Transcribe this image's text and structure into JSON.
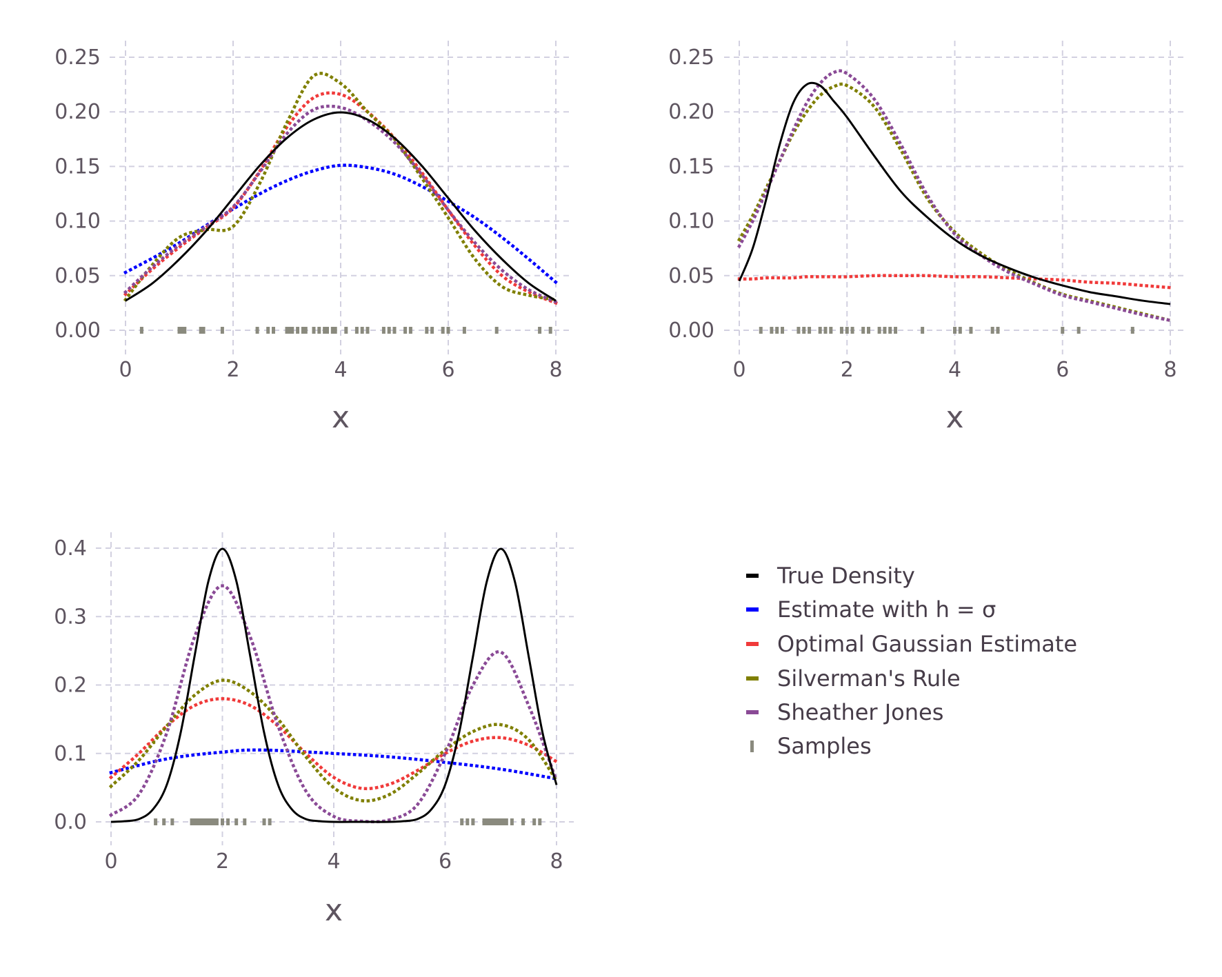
{
  "colors": {
    "true_density": "#000000",
    "h_sigma": "#0000ff",
    "optimal": "#f03a3a",
    "silverman": "#7f7f00",
    "sheather_jones": "#8a4a96",
    "samples": "#8a8a7e",
    "grid": "#d2d0e0"
  },
  "legend": {
    "placement": "bottom-right",
    "items": [
      {
        "key": "true_density",
        "label": "True Density",
        "marker": "dash"
      },
      {
        "key": "h_sigma",
        "label": "Estimate with h = σ",
        "marker": "dash"
      },
      {
        "key": "optimal",
        "label": "Optimal Gaussian Estimate",
        "marker": "dash"
      },
      {
        "key": "silverman",
        "label": "Silverman's Rule",
        "marker": "dash"
      },
      {
        "key": "sheather_jones",
        "label": "Sheather Jones",
        "marker": "dash"
      },
      {
        "key": "samples",
        "label": "Samples",
        "marker": "tick"
      }
    ]
  },
  "chart_data": [
    {
      "type": "line",
      "xlabel": "x",
      "ylabel": "",
      "xlim": [
        0,
        8
      ],
      "ylim": [
        0,
        0.25
      ],
      "xticks": [
        "0",
        "2",
        "4",
        "6",
        "8"
      ],
      "yticks": [
        "0.00",
        "0.05",
        "0.10",
        "0.15",
        "0.20",
        "0.25"
      ],
      "grid": true,
      "series": [
        {
          "key": "h_sigma",
          "x": [
            0,
            0.5,
            1,
            1.5,
            2,
            2.5,
            3,
            3.5,
            4,
            4.5,
            5,
            5.5,
            6,
            6.5,
            7,
            7.5,
            8
          ],
          "y": [
            0.053,
            0.066,
            0.08,
            0.096,
            0.111,
            0.125,
            0.137,
            0.146,
            0.151,
            0.149,
            0.143,
            0.132,
            0.118,
            0.103,
            0.085,
            0.065,
            0.044
          ]
        },
        {
          "key": "optimal",
          "x": [
            0,
            0.5,
            1,
            1.5,
            2,
            2.5,
            3,
            3.5,
            4,
            4.5,
            5,
            5.5,
            6,
            6.5,
            7,
            7.5,
            8
          ],
          "y": [
            0.033,
            0.056,
            0.076,
            0.094,
            0.112,
            0.146,
            0.186,
            0.213,
            0.216,
            0.2,
            0.176,
            0.145,
            0.11,
            0.077,
            0.05,
            0.035,
            0.025
          ]
        },
        {
          "key": "silverman",
          "x": [
            0,
            0.5,
            1,
            1.5,
            2,
            2.5,
            3,
            3.5,
            4,
            4.5,
            5,
            5.5,
            6,
            6.5,
            7,
            7.5,
            8
          ],
          "y": [
            0.028,
            0.06,
            0.085,
            0.092,
            0.095,
            0.135,
            0.19,
            0.233,
            0.226,
            0.2,
            0.175,
            0.14,
            0.103,
            0.065,
            0.04,
            0.032,
            0.028
          ]
        },
        {
          "key": "sheather_jones",
          "x": [
            0,
            0.5,
            1,
            1.5,
            2,
            2.5,
            3,
            3.5,
            4,
            4.5,
            5,
            5.5,
            6,
            6.5,
            7,
            7.5,
            8
          ],
          "y": [
            0.035,
            0.058,
            0.078,
            0.095,
            0.113,
            0.145,
            0.18,
            0.202,
            0.204,
            0.192,
            0.172,
            0.143,
            0.11,
            0.08,
            0.055,
            0.037,
            0.026
          ]
        },
        {
          "key": "true_density",
          "x": [
            0,
            0.5,
            1,
            1.5,
            2,
            2.5,
            3,
            3.5,
            4,
            4.5,
            5,
            5.5,
            6,
            6.5,
            7,
            7.5,
            8
          ],
          "y": [
            0.027,
            0.043,
            0.065,
            0.091,
            0.121,
            0.151,
            0.176,
            0.193,
            0.1995,
            0.193,
            0.176,
            0.151,
            0.121,
            0.091,
            0.065,
            0.043,
            0.027
          ]
        }
      ],
      "samples": [
        0.3,
        1.0,
        1.05,
        1.1,
        1.4,
        1.45,
        1.8,
        2.45,
        2.65,
        2.75,
        3.0,
        3.05,
        3.1,
        3.2,
        3.3,
        3.35,
        3.5,
        3.6,
        3.7,
        3.75,
        3.85,
        3.9,
        4.1,
        4.3,
        4.4,
        4.5,
        4.8,
        4.9,
        5.0,
        5.2,
        5.3,
        5.6,
        5.7,
        5.9,
        6.0,
        6.3,
        6.9,
        7.7,
        7.9
      ]
    },
    {
      "type": "line",
      "xlabel": "x",
      "ylabel": "",
      "xlim": [
        0,
        8
      ],
      "ylim": [
        0,
        0.25
      ],
      "xticks": [
        "0",
        "2",
        "4",
        "6",
        "8"
      ],
      "yticks": [
        "0.00",
        "0.05",
        "0.10",
        "0.15",
        "0.20",
        "0.25"
      ],
      "grid": true,
      "series": [
        {
          "key": "optimal",
          "x": [
            0,
            0.25,
            0.5,
            0.75,
            1,
            1.25,
            1.5,
            1.75,
            2,
            2.5,
            3,
            3.5,
            4,
            4.5,
            5,
            5.5,
            6,
            6.5,
            7,
            7.5,
            8
          ],
          "y": [
            0.047,
            0.047,
            0.048,
            0.048,
            0.048,
            0.049,
            0.049,
            0.049,
            0.049,
            0.05,
            0.05,
            0.05,
            0.049,
            0.049,
            0.048,
            0.047,
            0.046,
            0.044,
            0.043,
            0.041,
            0.039
          ]
        },
        {
          "key": "silverman",
          "x": [
            0,
            0.25,
            0.5,
            0.75,
            1,
            1.25,
            1.5,
            1.75,
            2,
            2.5,
            3,
            3.5,
            4,
            4.5,
            5,
            5.5,
            6,
            6.5,
            7,
            7.5,
            8
          ],
          "y": [
            0.083,
            0.105,
            0.13,
            0.155,
            0.18,
            0.2,
            0.215,
            0.223,
            0.224,
            0.205,
            0.165,
            0.12,
            0.09,
            0.07,
            0.055,
            0.043,
            0.033,
            0.027,
            0.021,
            0.015,
            0.009
          ]
        },
        {
          "key": "sheather_jones",
          "x": [
            0,
            0.25,
            0.5,
            0.75,
            1,
            1.25,
            1.5,
            1.75,
            2,
            2.5,
            3,
            3.5,
            4,
            4.5,
            5,
            5.5,
            6,
            6.5,
            7,
            7.5,
            8
          ],
          "y": [
            0.077,
            0.1,
            0.127,
            0.155,
            0.183,
            0.208,
            0.226,
            0.236,
            0.235,
            0.212,
            0.17,
            0.123,
            0.088,
            0.068,
            0.053,
            0.042,
            0.032,
            0.026,
            0.02,
            0.014,
            0.009
          ]
        },
        {
          "key": "true_density",
          "x": [
            0,
            0.25,
            0.5,
            0.75,
            1,
            1.25,
            1.5,
            1.75,
            2,
            2.5,
            3,
            3.5,
            4,
            4.5,
            5,
            5.5,
            6,
            6.5,
            7,
            7.5,
            8
          ],
          "y": [
            0.045,
            0.075,
            0.12,
            0.17,
            0.208,
            0.225,
            0.224,
            0.21,
            0.195,
            0.16,
            0.127,
            0.103,
            0.083,
            0.068,
            0.057,
            0.048,
            0.041,
            0.035,
            0.031,
            0.027,
            0.024
          ]
        }
      ],
      "samples": [
        0.4,
        0.6,
        0.7,
        0.8,
        1.1,
        1.2,
        1.3,
        1.5,
        1.6,
        1.7,
        1.9,
        2.0,
        2.1,
        2.3,
        2.4,
        2.6,
        2.7,
        2.8,
        2.9,
        3.4,
        4.0,
        4.1,
        4.3,
        4.7,
        4.8,
        6.0,
        6.3,
        7.3
      ]
    },
    {
      "type": "line",
      "xlabel": "x",
      "ylabel": "",
      "xlim": [
        0,
        8
      ],
      "ylim": [
        0,
        0.4
      ],
      "xticks": [
        "0",
        "2",
        "4",
        "6",
        "8"
      ],
      "yticks": [
        "0.0",
        "0.1",
        "0.2",
        "0.3",
        "0.4"
      ],
      "grid": true,
      "series": [
        {
          "key": "h_sigma",
          "x": [
            0,
            1,
            2,
            2.7,
            4,
            5,
            6,
            7,
            8
          ],
          "y": [
            0.072,
            0.092,
            0.102,
            0.105,
            0.1,
            0.095,
            0.087,
            0.077,
            0.063
          ]
        },
        {
          "key": "optimal",
          "x": [
            0,
            0.5,
            1,
            1.5,
            2,
            2.5,
            3,
            3.5,
            4,
            4.5,
            5,
            5.5,
            6,
            6.5,
            7,
            7.5,
            8
          ],
          "y": [
            0.065,
            0.1,
            0.14,
            0.17,
            0.18,
            0.17,
            0.14,
            0.1,
            0.065,
            0.049,
            0.055,
            0.075,
            0.1,
            0.118,
            0.123,
            0.112,
            0.088
          ]
        },
        {
          "key": "silverman",
          "x": [
            0,
            0.5,
            1,
            1.5,
            2,
            2.5,
            3,
            3.5,
            4,
            4.5,
            5,
            5.5,
            6,
            6.5,
            7,
            7.5,
            8
          ],
          "y": [
            0.052,
            0.09,
            0.14,
            0.185,
            0.207,
            0.19,
            0.15,
            0.095,
            0.05,
            0.031,
            0.04,
            0.07,
            0.105,
            0.132,
            0.142,
            0.12,
            0.06
          ]
        },
        {
          "key": "sheather_jones",
          "x": [
            0,
            0.5,
            1,
            1.5,
            2,
            2.5,
            3,
            3.5,
            4,
            4.5,
            5,
            5.5,
            6,
            6.5,
            7,
            7.5,
            8
          ],
          "y": [
            0.01,
            0.04,
            0.13,
            0.27,
            0.345,
            0.27,
            0.14,
            0.045,
            0.008,
            0.001,
            0.003,
            0.025,
            0.1,
            0.2,
            0.248,
            0.17,
            0.06
          ]
        },
        {
          "key": "true_density",
          "x": [
            0,
            0.25,
            0.5,
            0.75,
            1,
            1.25,
            1.5,
            1.75,
            2,
            2.25,
            2.5,
            2.75,
            3,
            3.25,
            3.5,
            3.75,
            4,
            4.5,
            5,
            5.25,
            5.5,
            5.75,
            6,
            6.25,
            6.5,
            6.75,
            7,
            7.25,
            7.5,
            7.75,
            8
          ],
          "y": [
            0.0,
            0.001,
            0.004,
            0.018,
            0.054,
            0.13,
            0.242,
            0.352,
            0.399,
            0.352,
            0.242,
            0.13,
            0.054,
            0.018,
            0.004,
            0.001,
            0.0,
            0.0,
            0.0,
            0.001,
            0.004,
            0.018,
            0.054,
            0.13,
            0.242,
            0.352,
            0.399,
            0.352,
            0.242,
            0.13,
            0.054
          ]
        }
      ],
      "samples": [
        0.8,
        0.95,
        1.1,
        1.45,
        1.5,
        1.55,
        1.6,
        1.65,
        1.7,
        1.75,
        1.8,
        1.85,
        1.9,
        2.0,
        2.1,
        2.25,
        2.4,
        2.75,
        2.85,
        6.3,
        6.4,
        6.5,
        6.7,
        6.75,
        6.8,
        6.85,
        6.9,
        6.95,
        7.0,
        7.05,
        7.1,
        7.2,
        7.4,
        7.6,
        7.7
      ]
    }
  ]
}
